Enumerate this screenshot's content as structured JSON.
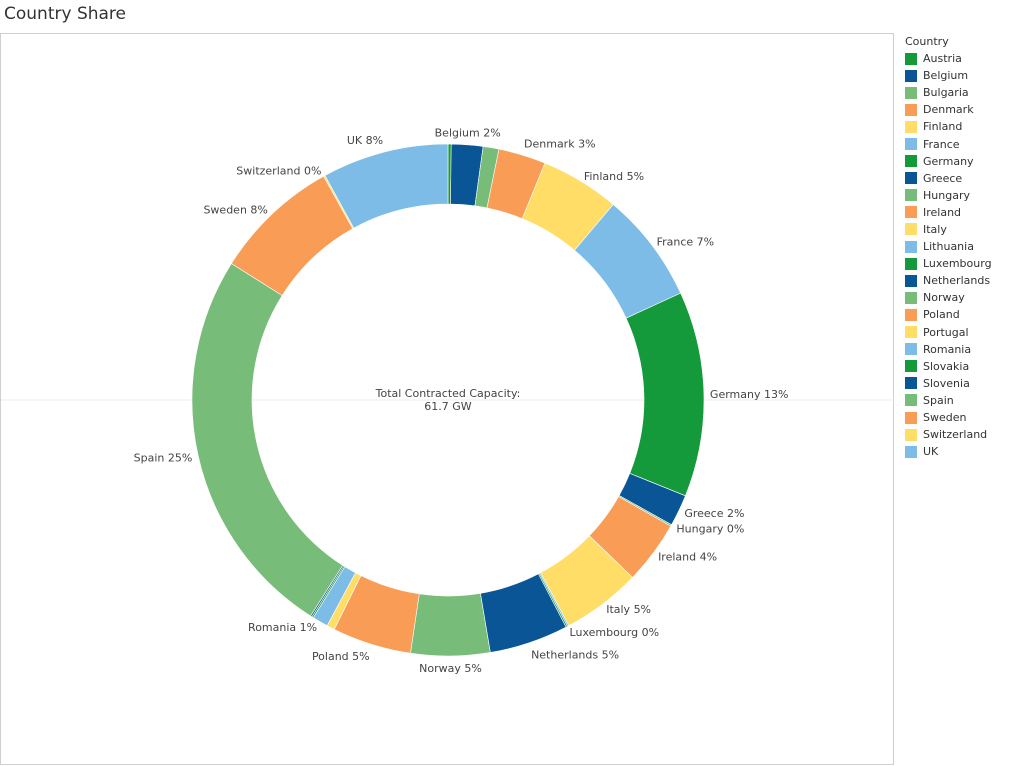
{
  "title": "Country Share",
  "legend": {
    "title": "Country"
  },
  "chart_data": {
    "type": "pie",
    "donut": true,
    "center_text": [
      "Total Contracted Capacity:",
      "61.7 GW"
    ],
    "slices": [
      {
        "name": "Austria",
        "value": 0.2,
        "label": "",
        "color": "#149a3a"
      },
      {
        "name": "Belgium",
        "value": 2,
        "label": "Belgium 2%",
        "color": "#0a5595"
      },
      {
        "name": "Bulgaria",
        "value": 1,
        "label": "",
        "color": "#77bd79"
      },
      {
        "name": "Denmark",
        "value": 3,
        "label": "Denmark 3%",
        "color": "#f89c56"
      },
      {
        "name": "Finland",
        "value": 5,
        "label": "Finland 5%",
        "color": "#ffdd66"
      },
      {
        "name": "France",
        "value": 7,
        "label": "France 7%",
        "color": "#7ebce8"
      },
      {
        "name": "Germany",
        "value": 13,
        "label": "Germany 13%",
        "color": "#149a3a"
      },
      {
        "name": "Greece",
        "value": 2,
        "label": "Greece 2%",
        "color": "#0a5595"
      },
      {
        "name": "Hungary",
        "value": 0.1,
        "label": "Hungary 0%",
        "color": "#77bd79"
      },
      {
        "name": "Ireland",
        "value": 4,
        "label": "Ireland 4%",
        "color": "#f89c56"
      },
      {
        "name": "Italy",
        "value": 5,
        "label": "Italy 5%",
        "color": "#ffdd66"
      },
      {
        "name": "Lithuania",
        "value": 0.1,
        "label": "",
        "color": "#7ebce8"
      },
      {
        "name": "Luxembourg",
        "value": 0.1,
        "label": "Luxembourg 0%",
        "color": "#149a3a"
      },
      {
        "name": "Netherlands",
        "value": 5,
        "label": "Netherlands 5%",
        "color": "#0a5595"
      },
      {
        "name": "Norway",
        "value": 5,
        "label": "Norway 5%",
        "color": "#77bd79"
      },
      {
        "name": "Poland",
        "value": 5,
        "label": "Poland 5%",
        "color": "#f89c56"
      },
      {
        "name": "Portugal",
        "value": 0.5,
        "label": "",
        "color": "#ffdd66"
      },
      {
        "name": "Romania",
        "value": 1,
        "label": "Romania 1%",
        "color": "#7ebce8"
      },
      {
        "name": "Slovakia",
        "value": 0.1,
        "label": "",
        "color": "#149a3a"
      },
      {
        "name": "Slovenia",
        "value": 0.1,
        "label": "",
        "color": "#0a5595"
      },
      {
        "name": "Spain",
        "value": 25,
        "label": "Spain 25%",
        "color": "#77bd79"
      },
      {
        "name": "Sweden",
        "value": 8,
        "label": "Sweden 8%",
        "color": "#f89c56"
      },
      {
        "name": "Switzerland",
        "value": 0.1,
        "label": "Switzerland 0%",
        "color": "#ffdd66"
      },
      {
        "name": "UK",
        "value": 8,
        "label": "UK 8%",
        "color": "#7ebce8"
      }
    ]
  }
}
